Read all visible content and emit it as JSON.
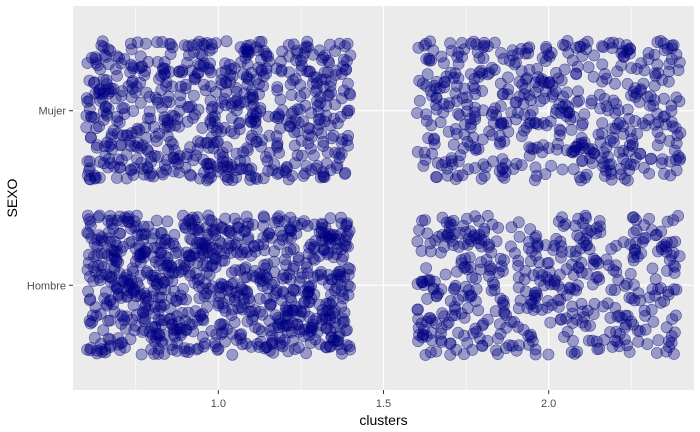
{
  "chart_data": {
    "type": "scatter",
    "title": "",
    "xlabel": "clusters",
    "ylabel": "SEXO",
    "xlim": [
      0.56,
      2.44
    ],
    "x_ticks": [
      1.0,
      1.5,
      2.0
    ],
    "x_tick_labels": [
      "1.0",
      "1.5",
      "2.0"
    ],
    "y_categories": [
      "Hombre",
      "Mujer"
    ],
    "grid": true,
    "legend": "none",
    "point_color": "#000080",
    "point_alpha": 0.35,
    "groups": [
      {
        "cluster": 1,
        "sexo": "Mujer",
        "x_range": [
          0.6,
          1.4
        ],
        "jitter": 0.4,
        "n_points": 650
      },
      {
        "cluster": 1,
        "sexo": "Hombre",
        "x_range": [
          0.6,
          1.4
        ],
        "jitter": 0.4,
        "n_points": 850
      },
      {
        "cluster": 2,
        "sexo": "Mujer",
        "x_range": [
          1.6,
          2.4
        ],
        "jitter": 0.4,
        "n_points": 500
      },
      {
        "cluster": 2,
        "sexo": "Hombre",
        "x_range": [
          1.6,
          2.4
        ],
        "jitter": 0.4,
        "n_points": 470
      }
    ]
  },
  "colors": {
    "panel": "#ebebeb",
    "grid_major": "#ffffff",
    "text": "#4d4d4d",
    "points": "#000080"
  }
}
